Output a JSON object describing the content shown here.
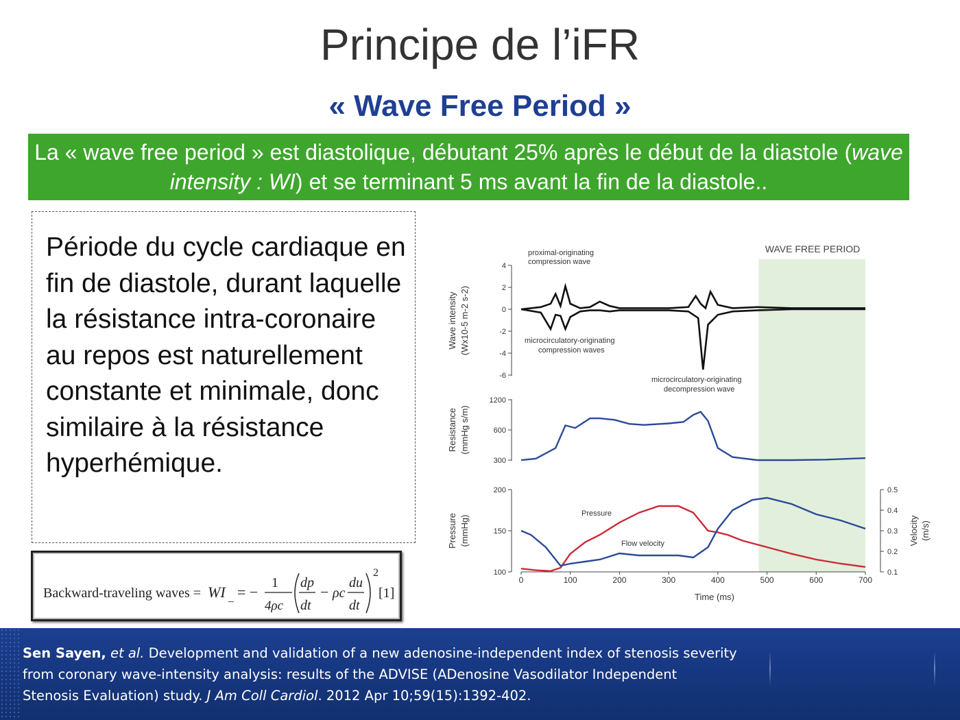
{
  "slide": {
    "title": "Principe  de l’iFR",
    "subtitle": "« Wave Free Period »",
    "banner": {
      "part1": "La « wave free period » est diastolique, débutant 25% après le début de la diastole (",
      "italic": "wave intensity : WI",
      "part2": ") et se terminant 5 ms avant la fin de la diastole.."
    },
    "description": "Période du  cycle cardiaque  en fin de diastole, durant laquelle la résistance intra-coronaire au repos est naturellement constante et minimale, donc similaire à la résistance hyperhémique."
  },
  "formula": {
    "label": "Backward-traveling waves = ",
    "lhs": "WI",
    "lhs_sub": "_",
    "equals": " = −",
    "frac_num": "1",
    "frac_den": "4ρc",
    "dp": "dp",
    "dt": "dt",
    "minus": "−",
    "rhoc": "ρc",
    "du": "du",
    "exponent": "2",
    "ref": "[1]"
  },
  "chart_data": {
    "type": "line",
    "title": "WAVE FREE PERIOD",
    "xlabel": "Time (ms)",
    "x_ticks": [
      "0",
      "100",
      "200",
      "300",
      "400",
      "500",
      "600",
      "700"
    ],
    "wave_free_period_ms": [
      483,
      700
    ],
    "panels": [
      {
        "name": "wave-intensity",
        "ylabel_line1": "Wave intensity",
        "ylabel_line2": "(Wx10-5 m-2 s-2)",
        "y_ticks": [
          "4",
          "2",
          "0",
          "-2",
          "-4",
          "-6"
        ],
        "ylim": [
          -6,
          4
        ],
        "annotations": [
          {
            "line1": "proximal-originating",
            "line2": "compression wave"
          },
          {
            "line1": "microcirculatory-originating",
            "line2": "compression waves"
          },
          {
            "line1": "microcirculatory-originating",
            "line2": "decompression wave"
          }
        ],
        "series": [
          {
            "color": "#111111",
            "x": [
              0,
              40,
              60,
              70,
              80,
              90,
              100,
              120,
              140,
              160,
              180,
              200,
              220,
              300,
              340,
              355,
              365,
              375,
              385,
              400,
              430,
              480,
              550,
              700
            ],
            "y": [
              0,
              0.2,
              0.5,
              1.4,
              0.3,
              2.1,
              0.5,
              0.1,
              0.2,
              0.7,
              0.3,
              0.1,
              0.1,
              0.1,
              0.2,
              1.2,
              0.5,
              0.1,
              1.6,
              0.4,
              0.1,
              0.2,
              0.1,
              0.1
            ]
          },
          {
            "color": "#111111",
            "x": [
              0,
              40,
              60,
              70,
              80,
              90,
              100,
              120,
              140,
              160,
              180,
              200,
              300,
              340,
              360,
              370,
              380,
              400,
              430,
              480,
              550,
              700
            ],
            "y": [
              0,
              -0.3,
              -1.8,
              -0.5,
              -0.6,
              -1.8,
              -0.7,
              -0.2,
              -0.1,
              -0.1,
              -0.2,
              -0.1,
              -0.1,
              -0.2,
              -0.8,
              -5.5,
              -1.4,
              -0.5,
              -0.2,
              -0.1,
              0,
              0
            ]
          }
        ]
      },
      {
        "name": "resistance",
        "ylabel_line1": "Resistance",
        "ylabel_line2": "(mmHg s/m)",
        "y_ticks": [
          "1200",
          "600",
          "300"
        ],
        "series": [
          {
            "name": "Resistance",
            "color": "#2b4a98",
            "x": [
              0,
              30,
              70,
              90,
              110,
              140,
              160,
              190,
              220,
              250,
              300,
              330,
              350,
              365,
              380,
              400,
              430,
              480,
              550,
              620,
              700
            ],
            "y": [
              300,
              315,
              420,
              690,
              640,
              830,
              830,
              800,
              720,
              700,
              730,
              760,
              900,
              960,
              780,
              420,
              330,
              300,
              300,
              305,
              320
            ]
          }
        ]
      },
      {
        "name": "pressure-velocity",
        "ylabel_line1": "Pressure",
        "ylabel_line2": "(mmHg)",
        "y_ticks": [
          "200",
          "150",
          "100"
        ],
        "ylim": [
          100,
          200
        ],
        "y2label": "Velocity",
        "y2unit": "(m/s)",
        "y2_ticks": [
          "0.5",
          "0.4",
          "0.3",
          "0.2",
          "0.1"
        ],
        "y2lim": [
          0.1,
          0.5
        ],
        "annotations": [
          {
            "text": "Pressure"
          },
          {
            "text": "Flow velocity"
          }
        ],
        "series": [
          {
            "name": "Pressure",
            "color": "#cc2a36",
            "x": [
              0,
              30,
              60,
              80,
              100,
              130,
              160,
              200,
              240,
              280,
              320,
              350,
              380,
              400,
              420,
              450,
              500,
              550,
              600,
              650,
              700
            ],
            "y": [
              104,
              102,
              101,
              105,
              122,
              136,
              145,
              160,
              172,
              180,
              180,
              172,
              150,
              148,
              145,
              138,
              130,
              122,
              115,
              110,
              106
            ]
          },
          {
            "name": "Flow velocity",
            "color": "#2b4a98",
            "x": [
              0,
              20,
              50,
              80,
              100,
              130,
              160,
              200,
              240,
              280,
              320,
              350,
              380,
              400,
              430,
              470,
              500,
              550,
              600,
              650,
              700
            ],
            "y": [
              0.3,
              0.28,
              0.22,
              0.13,
              0.14,
              0.15,
              0.16,
              0.19,
              0.18,
              0.18,
              0.18,
              0.17,
              0.22,
              0.31,
              0.4,
              0.45,
              0.46,
              0.43,
              0.38,
              0.35,
              0.31
            ]
          }
        ]
      }
    ]
  },
  "footer": {
    "author": "Sen Sayen,",
    "etal": " et al.",
    "line1_rest": " Development and validation of a new adenosine-independent index of stenosis severity",
    "line2": "from coronary wave-intensity analysis: results of the ADVISE (ADenosine Vasodilator Independent",
    "line3_start": "Stenosis Evaluation) study. ",
    "journal": "J Am Coll Cardiol",
    "line3_end": ". 2012 Apr 10;59(15):1392-402."
  }
}
